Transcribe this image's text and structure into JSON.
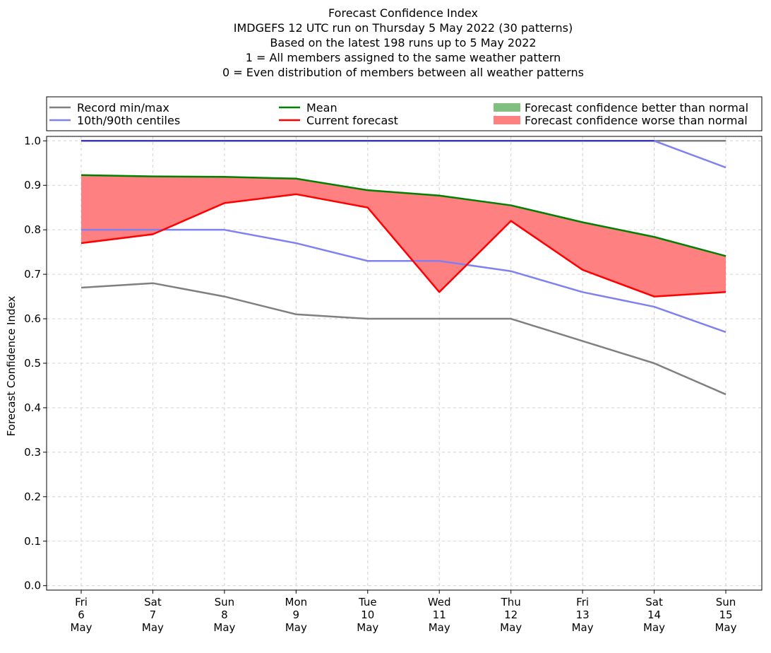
{
  "chart_data": {
    "type": "line",
    "title_lines": [
      "Forecast Confidence Index",
      "IMDGEFS 12 UTC run on Thursday 5 May 2022 (30 patterns)",
      "Based on the latest 198 runs up to 5 May 2022",
      "1 = All members assigned to the same weather pattern",
      "0 = Even distribution of members between all weather patterns"
    ],
    "ylabel": "Forecast Confidence Index",
    "xlabel": "",
    "ylim": [
      -0.01,
      1.01
    ],
    "yticks": [
      0.0,
      0.1,
      0.2,
      0.3,
      0.4,
      0.5,
      0.6,
      0.7,
      0.8,
      0.9,
      1.0
    ],
    "ytick_labels": [
      "0.0",
      "0.1",
      "0.2",
      "0.3",
      "0.4",
      "0.5",
      "0.6",
      "0.7",
      "0.8",
      "0.9",
      "1.0"
    ],
    "grid": true,
    "legend_position": "top",
    "categories": [
      [
        "Fri",
        "6",
        "May"
      ],
      [
        "Sat",
        "7",
        "May"
      ],
      [
        "Sun",
        "8",
        "May"
      ],
      [
        "Mon",
        "9",
        "May"
      ],
      [
        "Tue",
        "10",
        "May"
      ],
      [
        "Wed",
        "11",
        "May"
      ],
      [
        "Thu",
        "12",
        "May"
      ],
      [
        "Fri",
        "13",
        "May"
      ],
      [
        "Sat",
        "14",
        "May"
      ],
      [
        "Sun",
        "15",
        "May"
      ]
    ],
    "series": [
      {
        "key": "record_max",
        "legend": "record",
        "color": "#808080",
        "values": [
          1.0,
          1.0,
          1.0,
          1.0,
          1.0,
          1.0,
          1.0,
          1.0,
          1.0,
          1.0
        ]
      },
      {
        "key": "record_min",
        "legend": "record",
        "color": "#808080",
        "values": [
          0.67,
          0.68,
          0.65,
          0.61,
          0.6,
          0.6,
          0.6,
          0.55,
          0.5,
          0.43
        ]
      },
      {
        "key": "p90",
        "legend": "centiles",
        "color": "#8080f0",
        "values": [
          1.0,
          1.0,
          1.0,
          1.0,
          1.0,
          1.0,
          1.0,
          1.0,
          1.0,
          0.94
        ]
      },
      {
        "key": "p10",
        "legend": "centiles",
        "color": "#8080f0",
        "values": [
          0.8,
          0.8,
          0.8,
          0.77,
          0.73,
          0.73,
          0.707,
          0.66,
          0.627,
          0.57
        ]
      },
      {
        "key": "mean",
        "legend": "mean",
        "color": "#008000",
        "values": [
          0.923,
          0.92,
          0.919,
          0.915,
          0.889,
          0.877,
          0.855,
          0.817,
          0.784,
          0.741
        ]
      },
      {
        "key": "current",
        "legend": "current",
        "color": "#ff0000",
        "values": [
          0.77,
          0.79,
          0.86,
          0.88,
          0.85,
          0.66,
          0.82,
          0.71,
          0.65,
          0.66
        ]
      }
    ],
    "max_overlap_color": "#3a3ab8",
    "fill_better_color": "#80c080",
    "fill_worse_color": "#ff8080",
    "legend": [
      {
        "key": "record",
        "label": "Record min/max",
        "kind": "line",
        "color": "#808080"
      },
      {
        "key": "centiles",
        "label": "10th/90th centiles",
        "kind": "line",
        "color": "#8080f0"
      },
      {
        "key": "mean",
        "label": "Mean",
        "kind": "line",
        "color": "#008000"
      },
      {
        "key": "current",
        "label": "Current forecast",
        "kind": "line",
        "color": "#ff0000"
      },
      {
        "key": "better",
        "label": "Forecast confidence better than normal",
        "kind": "patch",
        "color": "#80c080"
      },
      {
        "key": "worse",
        "label": "Forecast confidence worse than normal",
        "kind": "patch",
        "color": "#ff8080"
      }
    ]
  }
}
